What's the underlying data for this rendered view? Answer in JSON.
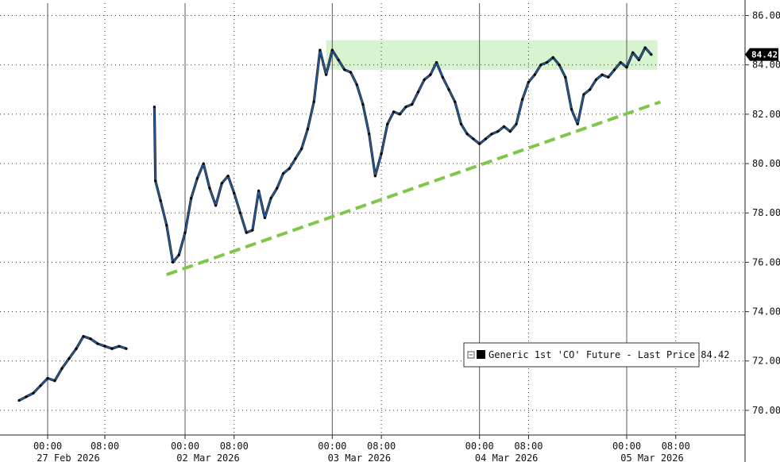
{
  "chart_data": {
    "type": "line",
    "title": "",
    "xlabel": "",
    "ylabel": "",
    "ylim": [
      69,
      86.5
    ],
    "y_ticks": [
      "70.00",
      "72.00",
      "74.00",
      "76.00",
      "78.00",
      "80.00",
      "82.00",
      "84.00",
      "86.00"
    ],
    "x_time_labels": [
      "00:00",
      "08:00",
      "00:00",
      "08:00",
      "00:00",
      "08:00",
      "00:00",
      "08:00",
      "00:00",
      "08:00"
    ],
    "x_date_labels": [
      "27 Feb 2026",
      "02 Mar 2026",
      "03 Mar 2026",
      "04 Mar 2026",
      "05 Mar 2026"
    ],
    "grid": true,
    "legend": {
      "placement": "lower-right",
      "entries": [
        "Generic 1st 'CO' Future - Last Price 84.42"
      ]
    },
    "last_price_label": "84.42",
    "colors": {
      "price_line": "#1f5ea8",
      "candle": "#000000",
      "trendline": "#7fc74a",
      "resistance_band": "#c9efc0",
      "last_price_box": "#000000"
    },
    "series": [
      {
        "name": "Generic 1st 'CO' Future - Last Price",
        "sessions": [
          {
            "points": [
              [
                "26 Feb 2026 20:00",
                70.4
              ],
              [
                "26 Feb 2026 21:00",
                70.55
              ],
              [
                "26 Feb 2026 22:00",
                70.7
              ],
              [
                "26 Feb 2026 23:00",
                71.0
              ],
              [
                "27 Feb 2026 00:00",
                71.3
              ],
              [
                "27 Feb 2026 01:00",
                71.2
              ],
              [
                "27 Feb 2026 02:00",
                71.7
              ],
              [
                "27 Feb 2026 03:00",
                72.1
              ],
              [
                "27 Feb 2026 04:00",
                72.5
              ],
              [
                "27 Feb 2026 05:00",
                73.0
              ],
              [
                "27 Feb 2026 06:00",
                72.9
              ],
              [
                "27 Feb 2026 07:00",
                72.7
              ],
              [
                "27 Feb 2026 08:00",
                72.6
              ],
              [
                "27 Feb 2026 09:00",
                72.5
              ],
              [
                "27 Feb 2026 10:00",
                72.6
              ],
              [
                "27 Feb 2026 11:00",
                72.5
              ]
            ]
          },
          {
            "points": [
              [
                "01 Mar 2026 19:00",
                82.3
              ],
              [
                "01 Mar 2026 19:10",
                79.3
              ],
              [
                "01 Mar 2026 20:00",
                78.5
              ],
              [
                "01 Mar 2026 21:00",
                77.5
              ],
              [
                "01 Mar 2026 22:00",
                76.0
              ],
              [
                "01 Mar 2026 23:00",
                76.3
              ],
              [
                "02 Mar 2026 00:00",
                77.2
              ],
              [
                "02 Mar 2026 01:00",
                78.6
              ],
              [
                "02 Mar 2026 02:00",
                79.4
              ],
              [
                "02 Mar 2026 03:00",
                80.0
              ],
              [
                "02 Mar 2026 04:00",
                79.0
              ],
              [
                "02 Mar 2026 05:00",
                78.3
              ],
              [
                "02 Mar 2026 06:00",
                79.2
              ],
              [
                "02 Mar 2026 07:00",
                79.5
              ],
              [
                "02 Mar 2026 08:00",
                78.8
              ],
              [
                "02 Mar 2026 09:00",
                78.0
              ],
              [
                "02 Mar 2026 10:00",
                77.2
              ],
              [
                "02 Mar 2026 11:00",
                77.3
              ],
              [
                "02 Mar 2026 12:00",
                78.9
              ],
              [
                "02 Mar 2026 13:00",
                77.8
              ],
              [
                "02 Mar 2026 14:00",
                78.6
              ],
              [
                "02 Mar 2026 15:00",
                79.0
              ],
              [
                "02 Mar 2026 16:00",
                79.6
              ],
              [
                "02 Mar 2026 17:00",
                79.8
              ],
              [
                "02 Mar 2026 18:00",
                80.2
              ],
              [
                "02 Mar 2026 19:00",
                80.6
              ],
              [
                "02 Mar 2026 20:00",
                81.4
              ],
              [
                "02 Mar 2026 21:00",
                82.5
              ],
              [
                "02 Mar 2026 22:00",
                84.6
              ],
              [
                "02 Mar 2026 23:00",
                83.6
              ],
              [
                "03 Mar 2026 00:00",
                84.6
              ],
              [
                "03 Mar 2026 01:00",
                84.2
              ],
              [
                "03 Mar 2026 02:00",
                83.8
              ],
              [
                "03 Mar 2026 03:00",
                83.7
              ],
              [
                "03 Mar 2026 04:00",
                83.2
              ],
              [
                "03 Mar 2026 05:00",
                82.4
              ],
              [
                "03 Mar 2026 06:00",
                81.2
              ],
              [
                "03 Mar 2026 07:00",
                79.5
              ],
              [
                "03 Mar 2026 08:00",
                80.4
              ],
              [
                "03 Mar 2026 09:00",
                81.6
              ],
              [
                "03 Mar 2026 10:00",
                82.1
              ],
              [
                "03 Mar 2026 11:00",
                82.0
              ],
              [
                "03 Mar 2026 12:00",
                82.3
              ],
              [
                "03 Mar 2026 13:00",
                82.4
              ],
              [
                "03 Mar 2026 14:00",
                82.9
              ],
              [
                "03 Mar 2026 15:00",
                83.4
              ],
              [
                "03 Mar 2026 16:00",
                83.6
              ],
              [
                "03 Mar 2026 17:00",
                84.1
              ],
              [
                "03 Mar 2026 18:00",
                83.5
              ],
              [
                "03 Mar 2026 19:00",
                83.0
              ],
              [
                "03 Mar 2026 20:00",
                82.5
              ],
              [
                "03 Mar 2026 21:00",
                81.6
              ],
              [
                "03 Mar 2026 22:00",
                81.2
              ],
              [
                "03 Mar 2026 23:00",
                81.0
              ],
              [
                "04 Mar 2026 00:00",
                80.8
              ],
              [
                "04 Mar 2026 01:00",
                81.0
              ],
              [
                "04 Mar 2026 02:00",
                81.2
              ],
              [
                "04 Mar 2026 03:00",
                81.3
              ],
              [
                "04 Mar 2026 04:00",
                81.5
              ],
              [
                "04 Mar 2026 05:00",
                81.3
              ],
              [
                "04 Mar 2026 06:00",
                81.6
              ],
              [
                "04 Mar 2026 07:00",
                82.6
              ],
              [
                "04 Mar 2026 08:00",
                83.3
              ],
              [
                "04 Mar 2026 09:00",
                83.6
              ],
              [
                "04 Mar 2026 10:00",
                84.0
              ],
              [
                "04 Mar 2026 11:00",
                84.1
              ],
              [
                "04 Mar 2026 12:00",
                84.3
              ],
              [
                "04 Mar 2026 13:00",
                84.0
              ],
              [
                "04 Mar 2026 14:00",
                83.5
              ],
              [
                "04 Mar 2026 15:00",
                82.2
              ],
              [
                "04 Mar 2026 16:00",
                81.6
              ],
              [
                "04 Mar 2026 17:00",
                82.8
              ],
              [
                "04 Mar 2026 18:00",
                83.0
              ],
              [
                "04 Mar 2026 19:00",
                83.4
              ],
              [
                "04 Mar 2026 20:00",
                83.6
              ],
              [
                "04 Mar 2026 21:00",
                83.5
              ],
              [
                "04 Mar 2026 22:00",
                83.8
              ],
              [
                "04 Mar 2026 23:00",
                84.1
              ],
              [
                "05 Mar 2026 00:00",
                83.9
              ],
              [
                "05 Mar 2026 01:00",
                84.5
              ],
              [
                "05 Mar 2026 02:00",
                84.2
              ],
              [
                "05 Mar 2026 03:00",
                84.7
              ],
              [
                "05 Mar 2026 04:00",
                84.42
              ]
            ]
          }
        ]
      }
    ],
    "annotations": {
      "trendline": {
        "from": [
          "01 Mar 2026 21:00",
          75.5
        ],
        "to": [
          "05 Mar 2026 05:30",
          82.5
        ]
      },
      "resistance_band": {
        "x_start": "02 Mar 2026 23:00",
        "x_end": "05 Mar 2026 05:00",
        "y_low": 83.8,
        "y_high": 85.0
      }
    }
  }
}
